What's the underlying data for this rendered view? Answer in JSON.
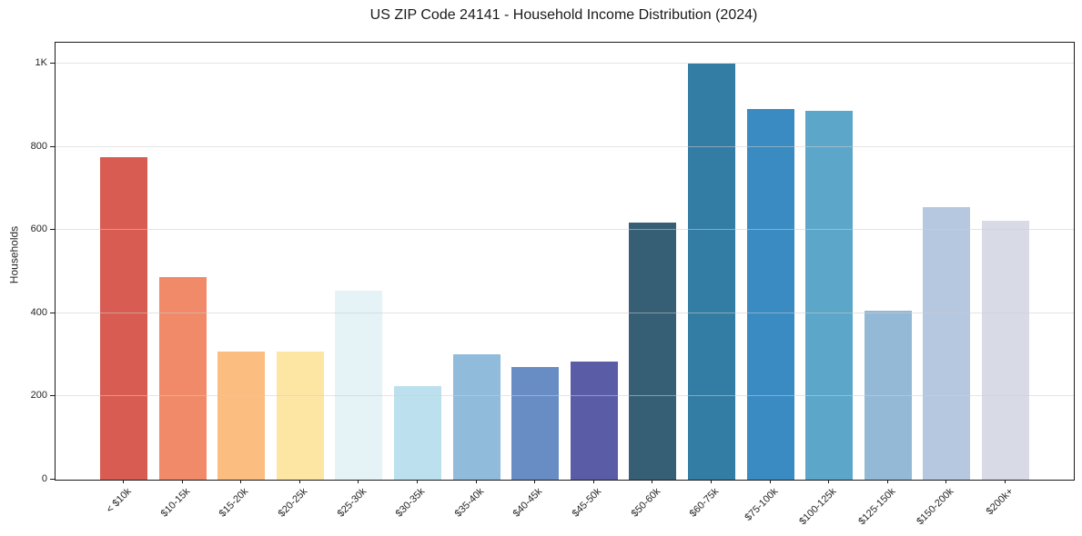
{
  "chart_data": {
    "type": "bar",
    "title": "US ZIP Code 24141 - Household Income Distribution (2024)",
    "xlabel": "",
    "ylabel": "Households",
    "categories": [
      "< $10k",
      "$10-15k",
      "$15-20k",
      "$20-25k",
      "$25-30k",
      "$30-35k",
      "$35-40k",
      "$40-45k",
      "$45-50k",
      "$50-60k",
      "$60-75k",
      "$75-100k",
      "$100-125k",
      "$125-150k",
      "$150-200k",
      "$200k+"
    ],
    "values": [
      775,
      487,
      308,
      308,
      453,
      225,
      301,
      271,
      284,
      617,
      1000,
      891,
      886,
      406,
      656,
      623
    ],
    "bar_colors": [
      "#d95c53",
      "#f08a68",
      "#fbbd80",
      "#fde6a4",
      "#e5f2f6",
      "#bde0ee",
      "#90bbdb",
      "#688dc4",
      "#5a5ca6",
      "#365e75",
      "#337ca3",
      "#398bc2",
      "#5ba6c9",
      "#93b9d6",
      "#b6c8e0",
      "#d8dbe6"
    ],
    "ylim": [
      0,
      1050
    ],
    "yticks": [
      {
        "value": 0,
        "label": "0"
      },
      {
        "value": 200,
        "label": "200"
      },
      {
        "value": 400,
        "label": "400"
      },
      {
        "value": 600,
        "label": "600"
      },
      {
        "value": 800,
        "label": "800"
      },
      {
        "value": 1000,
        "label": "1K"
      }
    ],
    "legend": "none",
    "grid": "horizontal-only",
    "colors": {
      "background": "#ffffff",
      "spine": "#1a1a1a",
      "grid": "#e3e3e3",
      "text": "#262626"
    }
  }
}
